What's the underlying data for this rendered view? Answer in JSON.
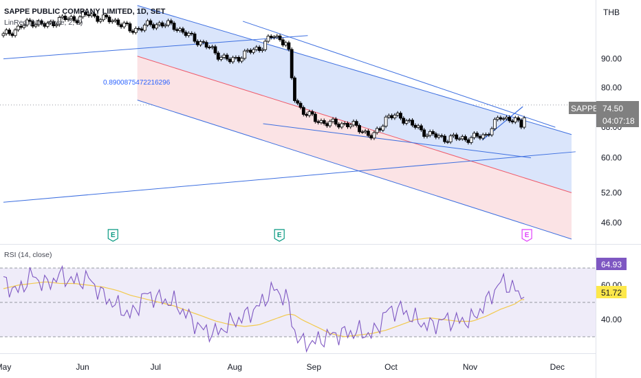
{
  "chart_data": {
    "type": "candlestick",
    "title": "SAPPE PUBLIC COMPANY LIMITED, 1D, SET",
    "currency": "THB",
    "indicator_label": "LinReg (100, close, 2, 2)",
    "annotation": "0.8900875472216296",
    "symbol": "SAPPE",
    "last_price": "74.50",
    "countdown": "04:07:18",
    "x_ticks": [
      "May",
      "Jun",
      "Jul",
      "Aug",
      "Sep",
      "Oct",
      "Nov",
      "Dec"
    ],
    "y_ticks": [
      "90.00",
      "80.00",
      "68.00",
      "60.00",
      "52.00",
      "46.00"
    ],
    "price_range": [
      42.5,
      112
    ],
    "log_scale": true,
    "events": [
      {
        "label": "E",
        "day": 54,
        "type": "past"
      },
      {
        "label": "E",
        "day": 136,
        "type": "past"
      },
      {
        "label": "E",
        "day": 258,
        "type": "upcoming"
      }
    ],
    "linreg_channel": {
      "start_day": 66,
      "end_day": 280,
      "upper": [
        112,
        66
      ],
      "mid": [
        91,
        52
      ],
      "lower": [
        76,
        43
      ]
    },
    "trend_lines": [
      {
        "from": [
          0,
          90
        ],
        "to": [
          150,
          99
        ]
      },
      {
        "from": [
          118,
          105
        ],
        "to": [
          272,
          68
        ]
      },
      {
        "from": [
          128,
          69
        ],
        "to": [
          260,
          60
        ]
      },
      {
        "from": [
          0,
          50
        ],
        "to": [
          282,
          61.5
        ]
      }
    ],
    "trend_segments": [
      {
        "from": [
          236,
          64.5
        ],
        "to": [
          256,
          74
        ]
      }
    ],
    "candles": [
      {
        "day": 0,
        "close": 99
      },
      {
        "day": 7,
        "close": 102
      },
      {
        "day": 14,
        "close": 105
      },
      {
        "day": 21,
        "close": 103
      },
      {
        "day": 28,
        "close": 106
      },
      {
        "day": 35,
        "close": 106
      },
      {
        "day": 42,
        "close": 108
      },
      {
        "day": 49,
        "close": 106
      },
      {
        "day": 56,
        "close": 105
      },
      {
        "day": 63,
        "close": 101
      },
      {
        "day": 70,
        "close": 103
      },
      {
        "day": 77,
        "close": 104
      },
      {
        "day": 84,
        "close": 103
      },
      {
        "day": 91,
        "close": 99
      },
      {
        "day": 98,
        "close": 96
      },
      {
        "day": 105,
        "close": 92
      },
      {
        "day": 112,
        "close": 89
      },
      {
        "day": 119,
        "close": 92
      },
      {
        "day": 126,
        "close": 94
      },
      {
        "day": 133,
        "close": 99
      },
      {
        "day": 140,
        "close": 96
      },
      {
        "day": 143,
        "close": 77
      },
      {
        "day": 147,
        "close": 73
      },
      {
        "day": 154,
        "close": 70
      },
      {
        "day": 161,
        "close": 69
      },
      {
        "day": 168,
        "close": 69
      },
      {
        "day": 175,
        "close": 68
      },
      {
        "day": 182,
        "close": 65
      },
      {
        "day": 189,
        "close": 71
      },
      {
        "day": 196,
        "close": 71
      },
      {
        "day": 203,
        "close": 68
      },
      {
        "day": 210,
        "close": 66
      },
      {
        "day": 217,
        "close": 65
      },
      {
        "day": 224,
        "close": 65
      },
      {
        "day": 231,
        "close": 65
      },
      {
        "day": 238,
        "close": 66
      },
      {
        "day": 245,
        "close": 71
      },
      {
        "day": 252,
        "close": 70
      },
      {
        "day": 255,
        "close": 68
      },
      {
        "day": 258,
        "close": 74.5
      }
    ],
    "rsi": {
      "label": "RSI (14, close)",
      "value": "64.93",
      "ma_value": "51.72",
      "y_ticks": [
        "60.00",
        "40.00"
      ],
      "range": [
        22,
        82
      ],
      "bands": [
        70,
        50,
        30
      ],
      "points": [
        {
          "day": 0,
          "rsi": 62,
          "ma": 58
        },
        {
          "day": 7,
          "rsi": 56,
          "ma": 60
        },
        {
          "day": 14,
          "rsi": 66,
          "ma": 61
        },
        {
          "day": 21,
          "rsi": 60,
          "ma": 62
        },
        {
          "day": 28,
          "rsi": 66,
          "ma": 61
        },
        {
          "day": 35,
          "rsi": 62,
          "ma": 61
        },
        {
          "day": 42,
          "rsi": 64,
          "ma": 60
        },
        {
          "day": 49,
          "rsi": 54,
          "ma": 59
        },
        {
          "day": 56,
          "rsi": 48,
          "ma": 57
        },
        {
          "day": 63,
          "rsi": 42,
          "ma": 54
        },
        {
          "day": 70,
          "rsi": 55,
          "ma": 52
        },
        {
          "day": 77,
          "rsi": 52,
          "ma": 50
        },
        {
          "day": 84,
          "rsi": 50,
          "ma": 48
        },
        {
          "day": 91,
          "rsi": 42,
          "ma": 45
        },
        {
          "day": 98,
          "rsi": 34,
          "ma": 42
        },
        {
          "day": 105,
          "rsi": 32,
          "ma": 39
        },
        {
          "day": 112,
          "rsi": 38,
          "ma": 37
        },
        {
          "day": 119,
          "rsi": 42,
          "ma": 36
        },
        {
          "day": 126,
          "rsi": 48,
          "ma": 37
        },
        {
          "day": 133,
          "rsi": 58,
          "ma": 40
        },
        {
          "day": 140,
          "rsi": 52,
          "ma": 43
        },
        {
          "day": 143,
          "rsi": 34,
          "ma": 43
        },
        {
          "day": 147,
          "rsi": 26,
          "ma": 40
        },
        {
          "day": 154,
          "rsi": 27,
          "ma": 36
        },
        {
          "day": 161,
          "rsi": 31,
          "ma": 32
        },
        {
          "day": 168,
          "rsi": 32,
          "ma": 30
        },
        {
          "day": 175,
          "rsi": 33,
          "ma": 31
        },
        {
          "day": 182,
          "rsi": 31,
          "ma": 32
        },
        {
          "day": 189,
          "rsi": 45,
          "ma": 34
        },
        {
          "day": 196,
          "rsi": 46,
          "ma": 37
        },
        {
          "day": 203,
          "rsi": 40,
          "ma": 40
        },
        {
          "day": 210,
          "rsi": 36,
          "ma": 41
        },
        {
          "day": 217,
          "rsi": 40,
          "ma": 40
        },
        {
          "day": 224,
          "rsi": 39,
          "ma": 39
        },
        {
          "day": 231,
          "rsi": 40,
          "ma": 39
        },
        {
          "day": 238,
          "rsi": 50,
          "ma": 42
        },
        {
          "day": 245,
          "rsi": 62,
          "ma": 46
        },
        {
          "day": 252,
          "rsi": 58,
          "ma": 49
        },
        {
          "day": 255,
          "rsi": 52,
          "ma": 51.5
        },
        {
          "day": 258,
          "rsi": 64.93,
          "ma": 51.72
        }
      ]
    }
  },
  "colors": {
    "candle_up": "#ffffff",
    "candle_down": "#000000",
    "candle_border": "#000000",
    "channel_upper_fill": "#dae5fb",
    "channel_lower_fill": "#fbe3e5",
    "channel_line": "#3d6fe0",
    "channel_mid": "#ef5a6a",
    "trend_line": "#3d6fe0",
    "rsi_line": "#7e57c2",
    "rsi_ma": "#f2c94c",
    "rsi_bg": "#efecf9",
    "badge_price": "#808080",
    "badge_rsi": "#7e57c2",
    "badge_ma": "#fde84a",
    "earnings_past": "#089981",
    "earnings_upcoming": "#e040fb"
  }
}
